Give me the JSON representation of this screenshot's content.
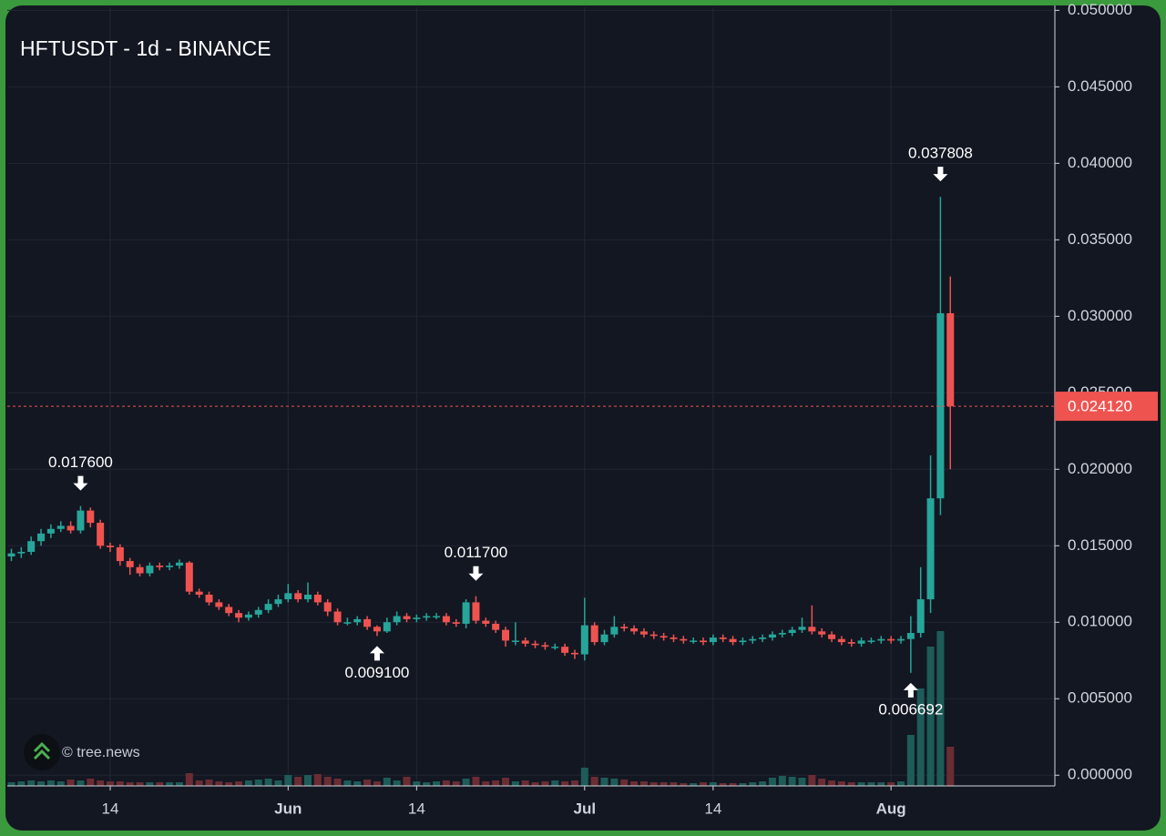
{
  "chart_data": {
    "type": "candlestick",
    "title": "HFTUSDT - 1d - BINANCE",
    "watermark": "© tree.news",
    "up_color": "#26a69a",
    "down_color": "#ef5350",
    "volume_up_color": "#1d5c58",
    "volume_down_color": "#6b2c33",
    "grid": true,
    "x": [
      "May 4",
      "May 5",
      "May 6",
      "May 7",
      "May 8",
      "May 9",
      "May 10",
      "May 11",
      "May 12",
      "May 13",
      "May 14",
      "May 15",
      "May 16",
      "May 17",
      "May 18",
      "May 19",
      "May 20",
      "May 21",
      "May 22",
      "May 23",
      "May 24",
      "May 25",
      "May 26",
      "May 27",
      "May 28",
      "May 29",
      "May 30",
      "May 31",
      "Jun 1",
      "Jun 2",
      "Jun 3",
      "Jun 4",
      "Jun 5",
      "Jun 6",
      "Jun 7",
      "Jun 8",
      "Jun 9",
      "Jun 10",
      "Jun 11",
      "Jun 12",
      "Jun 13",
      "Jun 14",
      "Jun 15",
      "Jun 16",
      "Jun 17",
      "Jun 18",
      "Jun 19",
      "Jun 20",
      "Jun 21",
      "Jun 22",
      "Jun 23",
      "Jun 24",
      "Jun 25",
      "Jun 26",
      "Jun 27",
      "Jun 28",
      "Jun 29",
      "Jun 30",
      "Jul 1",
      "Jul 2",
      "Jul 3",
      "Jul 4",
      "Jul 5",
      "Jul 6",
      "Jul 7",
      "Jul 8",
      "Jul 9",
      "Jul 10",
      "Jul 11",
      "Jul 12",
      "Jul 13",
      "Jul 14",
      "Jul 15",
      "Jul 16",
      "Jul 17",
      "Jul 18",
      "Jul 19",
      "Jul 20",
      "Jul 21",
      "Jul 22",
      "Jul 23",
      "Jul 24",
      "Jul 25",
      "Jul 26",
      "Jul 27",
      "Jul 28",
      "Jul 29",
      "Jul 30",
      "Jul 31",
      "Aug 1",
      "Aug 2",
      "Aug 3",
      "Aug 4",
      "Aug 5",
      "Aug 6",
      "Aug 7"
    ],
    "open": [
      0.0143,
      0.0145,
      0.0146,
      0.0153,
      0.0158,
      0.0161,
      0.0163,
      0.016,
      0.0173,
      0.0165,
      0.015,
      0.0149,
      0.014,
      0.0136,
      0.0132,
      0.0137,
      0.0136,
      0.0137,
      0.0139,
      0.012,
      0.0118,
      0.0113,
      0.011,
      0.0106,
      0.0103,
      0.0105,
      0.0108,
      0.0112,
      0.0115,
      0.0119,
      0.0115,
      0.0118,
      0.0113,
      0.0107,
      0.01,
      0.01,
      0.0102,
      0.0097,
      0.0094,
      0.01,
      0.0104,
      0.0102,
      0.0103,
      0.0104,
      0.0104,
      0.01,
      0.0099,
      0.0113,
      0.0101,
      0.0099,
      0.0095,
      0.0088,
      0.0088,
      0.0086,
      0.0085,
      0.0084,
      0.0084,
      0.008,
      0.0079,
      0.0098,
      0.0087,
      0.0092,
      0.0097,
      0.0096,
      0.0094,
      0.0092,
      0.0091,
      0.009,
      0.0089,
      0.0088,
      0.0088,
      0.0087,
      0.009,
      0.0089,
      0.0087,
      0.0088,
      0.0089,
      0.009,
      0.0092,
      0.0093,
      0.0095,
      0.0097,
      0.0094,
      0.0092,
      0.0089,
      0.0087,
      0.0086,
      0.0088,
      0.0088,
      0.0089,
      0.0088,
      0.0089,
      0.0093,
      0.0115,
      0.0181,
      0.0302
    ],
    "high": [
      0.0148,
      0.0149,
      0.0156,
      0.0161,
      0.0164,
      0.0166,
      0.0166,
      0.0176,
      0.0175,
      0.0167,
      0.0152,
      0.0151,
      0.0142,
      0.0138,
      0.0139,
      0.0139,
      0.0139,
      0.0141,
      0.014,
      0.0122,
      0.012,
      0.0115,
      0.0112,
      0.0108,
      0.0107,
      0.011,
      0.0115,
      0.0118,
      0.0125,
      0.0121,
      0.0126,
      0.012,
      0.0115,
      0.0109,
      0.0103,
      0.0104,
      0.0104,
      0.0098,
      0.0103,
      0.0107,
      0.0106,
      0.0105,
      0.0106,
      0.0106,
      0.0106,
      0.0102,
      0.0115,
      0.0117,
      0.0103,
      0.0101,
      0.0097,
      0.01,
      0.009,
      0.0088,
      0.0087,
      0.0086,
      0.0086,
      0.0082,
      0.0116,
      0.01,
      0.0095,
      0.0104,
      0.0099,
      0.0098,
      0.0096,
      0.0094,
      0.0093,
      0.0092,
      0.0091,
      0.009,
      0.009,
      0.0092,
      0.0092,
      0.0091,
      0.009,
      0.0091,
      0.0092,
      0.0094,
      0.0095,
      0.0097,
      0.0103,
      0.0111,
      0.0096,
      0.0094,
      0.0091,
      0.0089,
      0.009,
      0.009,
      0.0091,
      0.0091,
      0.0091,
      0.0104,
      0.0136,
      0.0209,
      0.037808,
      0.0326
    ],
    "low": [
      0.014,
      0.0142,
      0.0144,
      0.015,
      0.0155,
      0.0159,
      0.0158,
      0.0158,
      0.0162,
      0.0148,
      0.0146,
      0.0137,
      0.0131,
      0.013,
      0.013,
      0.0134,
      0.0134,
      0.0135,
      0.0118,
      0.0116,
      0.0111,
      0.0108,
      0.0104,
      0.01,
      0.0101,
      0.0103,
      0.0106,
      0.011,
      0.0113,
      0.0113,
      0.0113,
      0.0111,
      0.0104,
      0.0098,
      0.0098,
      0.0098,
      0.0095,
      0.0091,
      0.0093,
      0.0098,
      0.01,
      0.01,
      0.0101,
      0.0102,
      0.0098,
      0.0097,
      0.0096,
      0.0099,
      0.0097,
      0.0093,
      0.0084,
      0.0085,
      0.0084,
      0.0083,
      0.0082,
      0.0082,
      0.0078,
      0.0076,
      0.0075,
      0.0085,
      0.0085,
      0.009,
      0.0094,
      0.0092,
      0.009,
      0.0089,
      0.0088,
      0.0087,
      0.0086,
      0.0086,
      0.0085,
      0.0085,
      0.0087,
      0.0085,
      0.0085,
      0.0086,
      0.0087,
      0.0088,
      0.009,
      0.0091,
      0.0093,
      0.0092,
      0.009,
      0.0087,
      0.0085,
      0.0084,
      0.0084,
      0.0086,
      0.0086,
      0.0086,
      0.0086,
      0.006692,
      0.009,
      0.0106,
      0.017,
      0.02
    ],
    "close": [
      0.0145,
      0.0146,
      0.0153,
      0.0158,
      0.0161,
      0.0163,
      0.016,
      0.0173,
      0.0165,
      0.015,
      0.0149,
      0.014,
      0.0136,
      0.0132,
      0.0137,
      0.0136,
      0.0137,
      0.0139,
      0.012,
      0.0118,
      0.0113,
      0.011,
      0.0106,
      0.0103,
      0.0105,
      0.0108,
      0.0112,
      0.0115,
      0.0119,
      0.0115,
      0.0118,
      0.0113,
      0.0107,
      0.01,
      0.01,
      0.0102,
      0.0097,
      0.0094,
      0.01,
      0.0104,
      0.0102,
      0.0103,
      0.0104,
      0.0104,
      0.01,
      0.0099,
      0.0113,
      0.0101,
      0.0099,
      0.0095,
      0.0088,
      0.0088,
      0.0086,
      0.0085,
      0.0084,
      0.0084,
      0.008,
      0.0079,
      0.0098,
      0.0087,
      0.0092,
      0.0097,
      0.0096,
      0.0094,
      0.0092,
      0.0091,
      0.009,
      0.0089,
      0.0088,
      0.0088,
      0.0087,
      0.009,
      0.0089,
      0.0087,
      0.0088,
      0.0089,
      0.009,
      0.0092,
      0.0093,
      0.0095,
      0.0097,
      0.0094,
      0.0092,
      0.0089,
      0.0087,
      0.0086,
      0.0088,
      0.0088,
      0.0089,
      0.0088,
      0.0089,
      0.0093,
      0.0115,
      0.0181,
      0.0302,
      0.02412
    ],
    "volume": [
      4,
      5,
      6,
      5,
      6,
      5,
      7,
      6,
      8,
      6,
      5,
      5,
      4,
      4,
      4,
      4,
      4,
      4,
      14,
      6,
      7,
      5,
      4,
      5,
      6,
      7,
      8,
      6,
      12,
      10,
      12,
      13,
      10,
      8,
      6,
      5,
      7,
      5,
      9,
      6,
      10,
      5,
      4,
      5,
      6,
      5,
      8,
      10,
      5,
      6,
      9,
      5,
      6,
      4,
      5,
      6,
      5,
      6,
      20,
      10,
      9,
      8,
      7,
      5,
      5,
      4,
      4,
      4,
      3,
      3,
      4,
      4,
      3,
      3,
      3,
      4,
      5,
      9,
      11,
      10,
      9,
      12,
      8,
      6,
      5,
      4,
      4,
      4,
      4,
      4,
      5,
      56,
      107,
      153,
      170,
      43
    ],
    "ylim": [
      -0.0007,
      0.0502
    ],
    "yticks": [
      {
        "value": 0,
        "label": "0.000000"
      },
      {
        "value": 0.005,
        "label": "0.005000"
      },
      {
        "value": 0.01,
        "label": "0.010000"
      },
      {
        "value": 0.015,
        "label": "0.015000"
      },
      {
        "value": 0.02,
        "label": "0.020000"
      },
      {
        "value": 0.025,
        "label": "0.025000"
      },
      {
        "value": 0.03,
        "label": "0.030000"
      },
      {
        "value": 0.035,
        "label": "0.035000"
      },
      {
        "value": 0.04,
        "label": "0.040000"
      },
      {
        "value": 0.045,
        "label": "0.045000"
      },
      {
        "value": 0.05,
        "label": "0.050000"
      }
    ],
    "xticks": [
      {
        "value": "May 14",
        "label": "14"
      },
      {
        "value": "Jun 1",
        "label": "Jun"
      },
      {
        "value": "Jun 14",
        "label": "14"
      },
      {
        "value": "Jul 1",
        "label": "Jul"
      },
      {
        "value": "Jul 14",
        "label": "14"
      },
      {
        "value": "Aug 1",
        "label": "Aug"
      }
    ],
    "annotations": [
      {
        "x": "May 11",
        "value": 0.0176,
        "label": "0.017600",
        "side": "above"
      },
      {
        "x": "Jun 10",
        "value": 0.0091,
        "label": "0.009100",
        "side": "below"
      },
      {
        "x": "Jun 20",
        "value": 0.0117,
        "label": "0.011700",
        "side": "above"
      },
      {
        "x": "Aug 3",
        "value": 0.006692,
        "label": "0.006692",
        "side": "below"
      },
      {
        "x": "Aug 6",
        "value": 0.037808,
        "label": "0.037808",
        "side": "above"
      }
    ],
    "last_price": {
      "value": 0.02412,
      "label": "0.024120"
    }
  }
}
